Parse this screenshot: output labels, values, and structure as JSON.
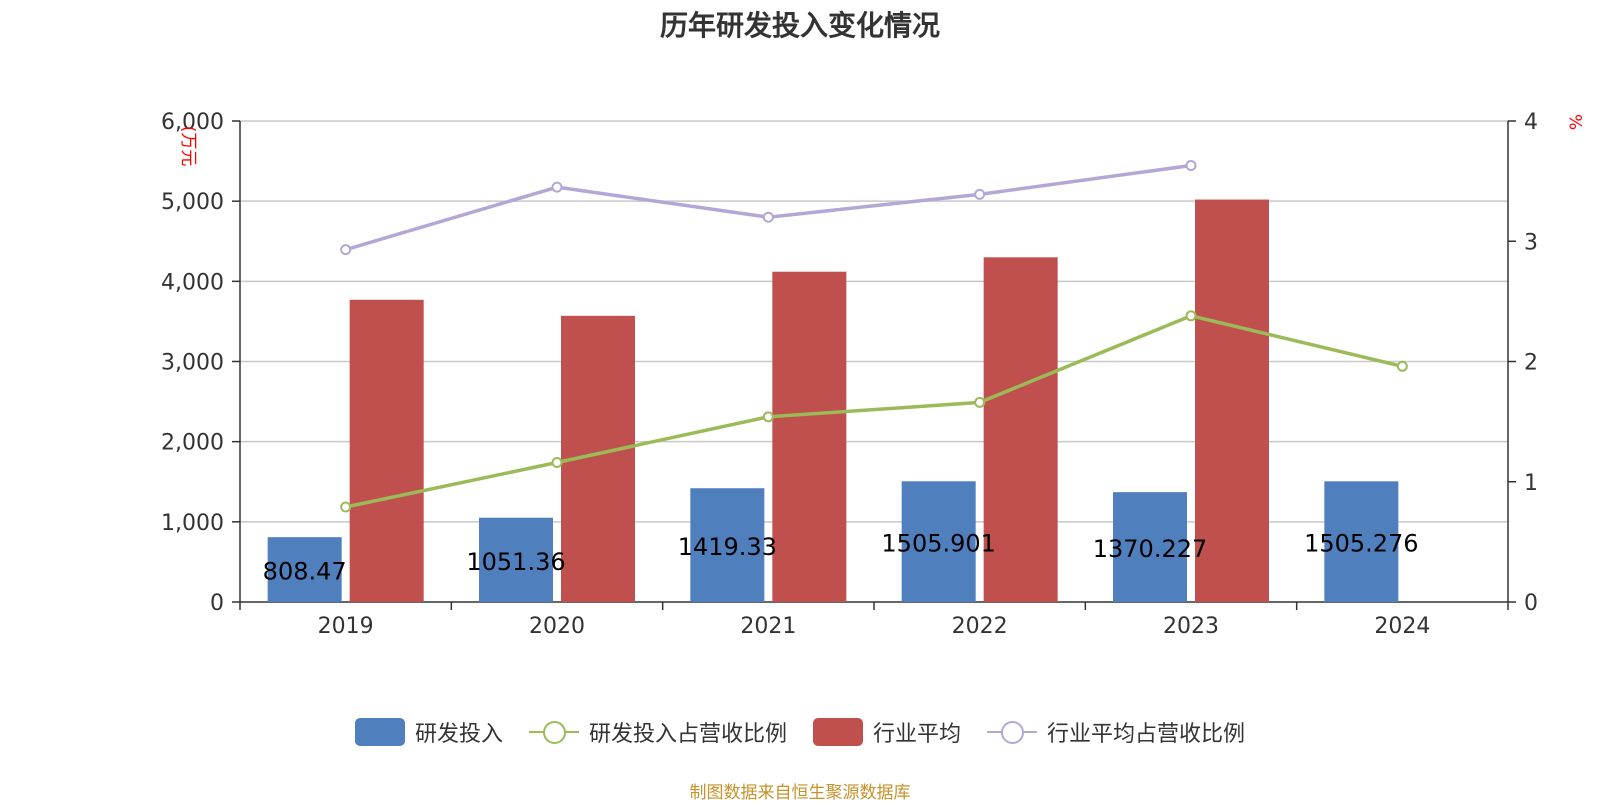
{
  "chart_data": {
    "type": "bar",
    "title": "历年研发投入变化情况",
    "categories": [
      "2019",
      "2020",
      "2021",
      "2022",
      "2023",
      "2024"
    ],
    "y_left": {
      "label": "(万元",
      "ticks": [
        "0",
        "1,000",
        "2,000",
        "3,000",
        "4,000",
        "5,000",
        "6,000"
      ],
      "ylim": [
        0,
        6000
      ]
    },
    "y_right": {
      "label": "%",
      "ticks": [
        "0",
        "1",
        "2",
        "3",
        "4"
      ],
      "ylim": [
        0,
        4
      ]
    },
    "grid": true,
    "legend_position": "bottom",
    "series": [
      {
        "name": "研发投入",
        "kind": "bar",
        "axis": "left",
        "color": "#4f7fbd",
        "values": [
          808.47,
          1051.36,
          1419.33,
          1505.901,
          1370.227,
          1505.276
        ],
        "labels": [
          "808.47",
          "1051.36",
          "1419.33",
          "1505.901",
          "1370.227",
          "1505.276"
        ]
      },
      {
        "name": "研发投入占营收比例",
        "kind": "line",
        "axis": "right",
        "color": "#9bbb59",
        "values": [
          0.79,
          1.16,
          1.54,
          1.66,
          2.38,
          1.96
        ]
      },
      {
        "name": "行业平均",
        "kind": "bar",
        "axis": "left",
        "color": "#c0504d",
        "values": [
          3770,
          3570,
          4120,
          4300,
          5020,
          null
        ]
      },
      {
        "name": "行业平均占营收比例",
        "kind": "line",
        "axis": "right",
        "color": "#b4a7d6",
        "values": [
          2.93,
          3.45,
          3.2,
          3.39,
          3.63,
          null
        ]
      }
    ]
  },
  "source_note": "制图数据来自恒生聚源数据库"
}
